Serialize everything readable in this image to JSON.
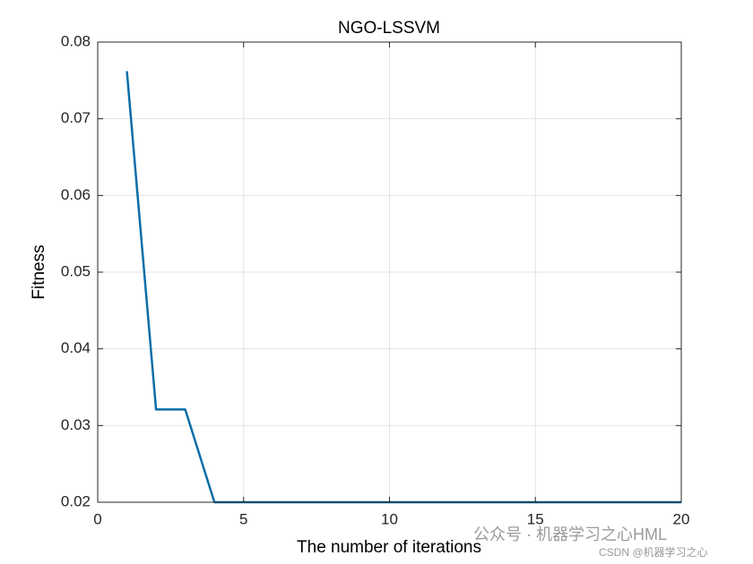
{
  "chart_data": {
    "type": "line",
    "title": "NGO-LSSVM",
    "x_label": "The number of iterations",
    "y_label": "Fitness",
    "x": [
      1,
      2,
      3,
      4,
      5,
      6,
      7,
      8,
      9,
      10,
      11,
      12,
      13,
      14,
      15,
      16,
      17,
      18,
      19,
      20
    ],
    "values": [
      0.0762,
      0.0321,
      0.0321,
      0.02,
      0.02,
      0.02,
      0.02,
      0.02,
      0.02,
      0.02,
      0.02,
      0.02,
      0.02,
      0.02,
      0.02,
      0.02,
      0.02,
      0.02,
      0.02,
      0.02
    ],
    "color": "#0b6ea8",
    "xlim": [
      0,
      20
    ],
    "xticks": [
      0,
      5,
      10,
      15,
      20
    ],
    "ylim": [
      0.02,
      0.08
    ],
    "yticks": [
      0.02,
      0.03,
      0.04,
      0.05,
      0.06,
      0.07,
      0.08
    ],
    "grid": true,
    "watermarks": [
      "公众号 · 机器学习之心HML",
      "CSDN @机器学习之心"
    ]
  }
}
